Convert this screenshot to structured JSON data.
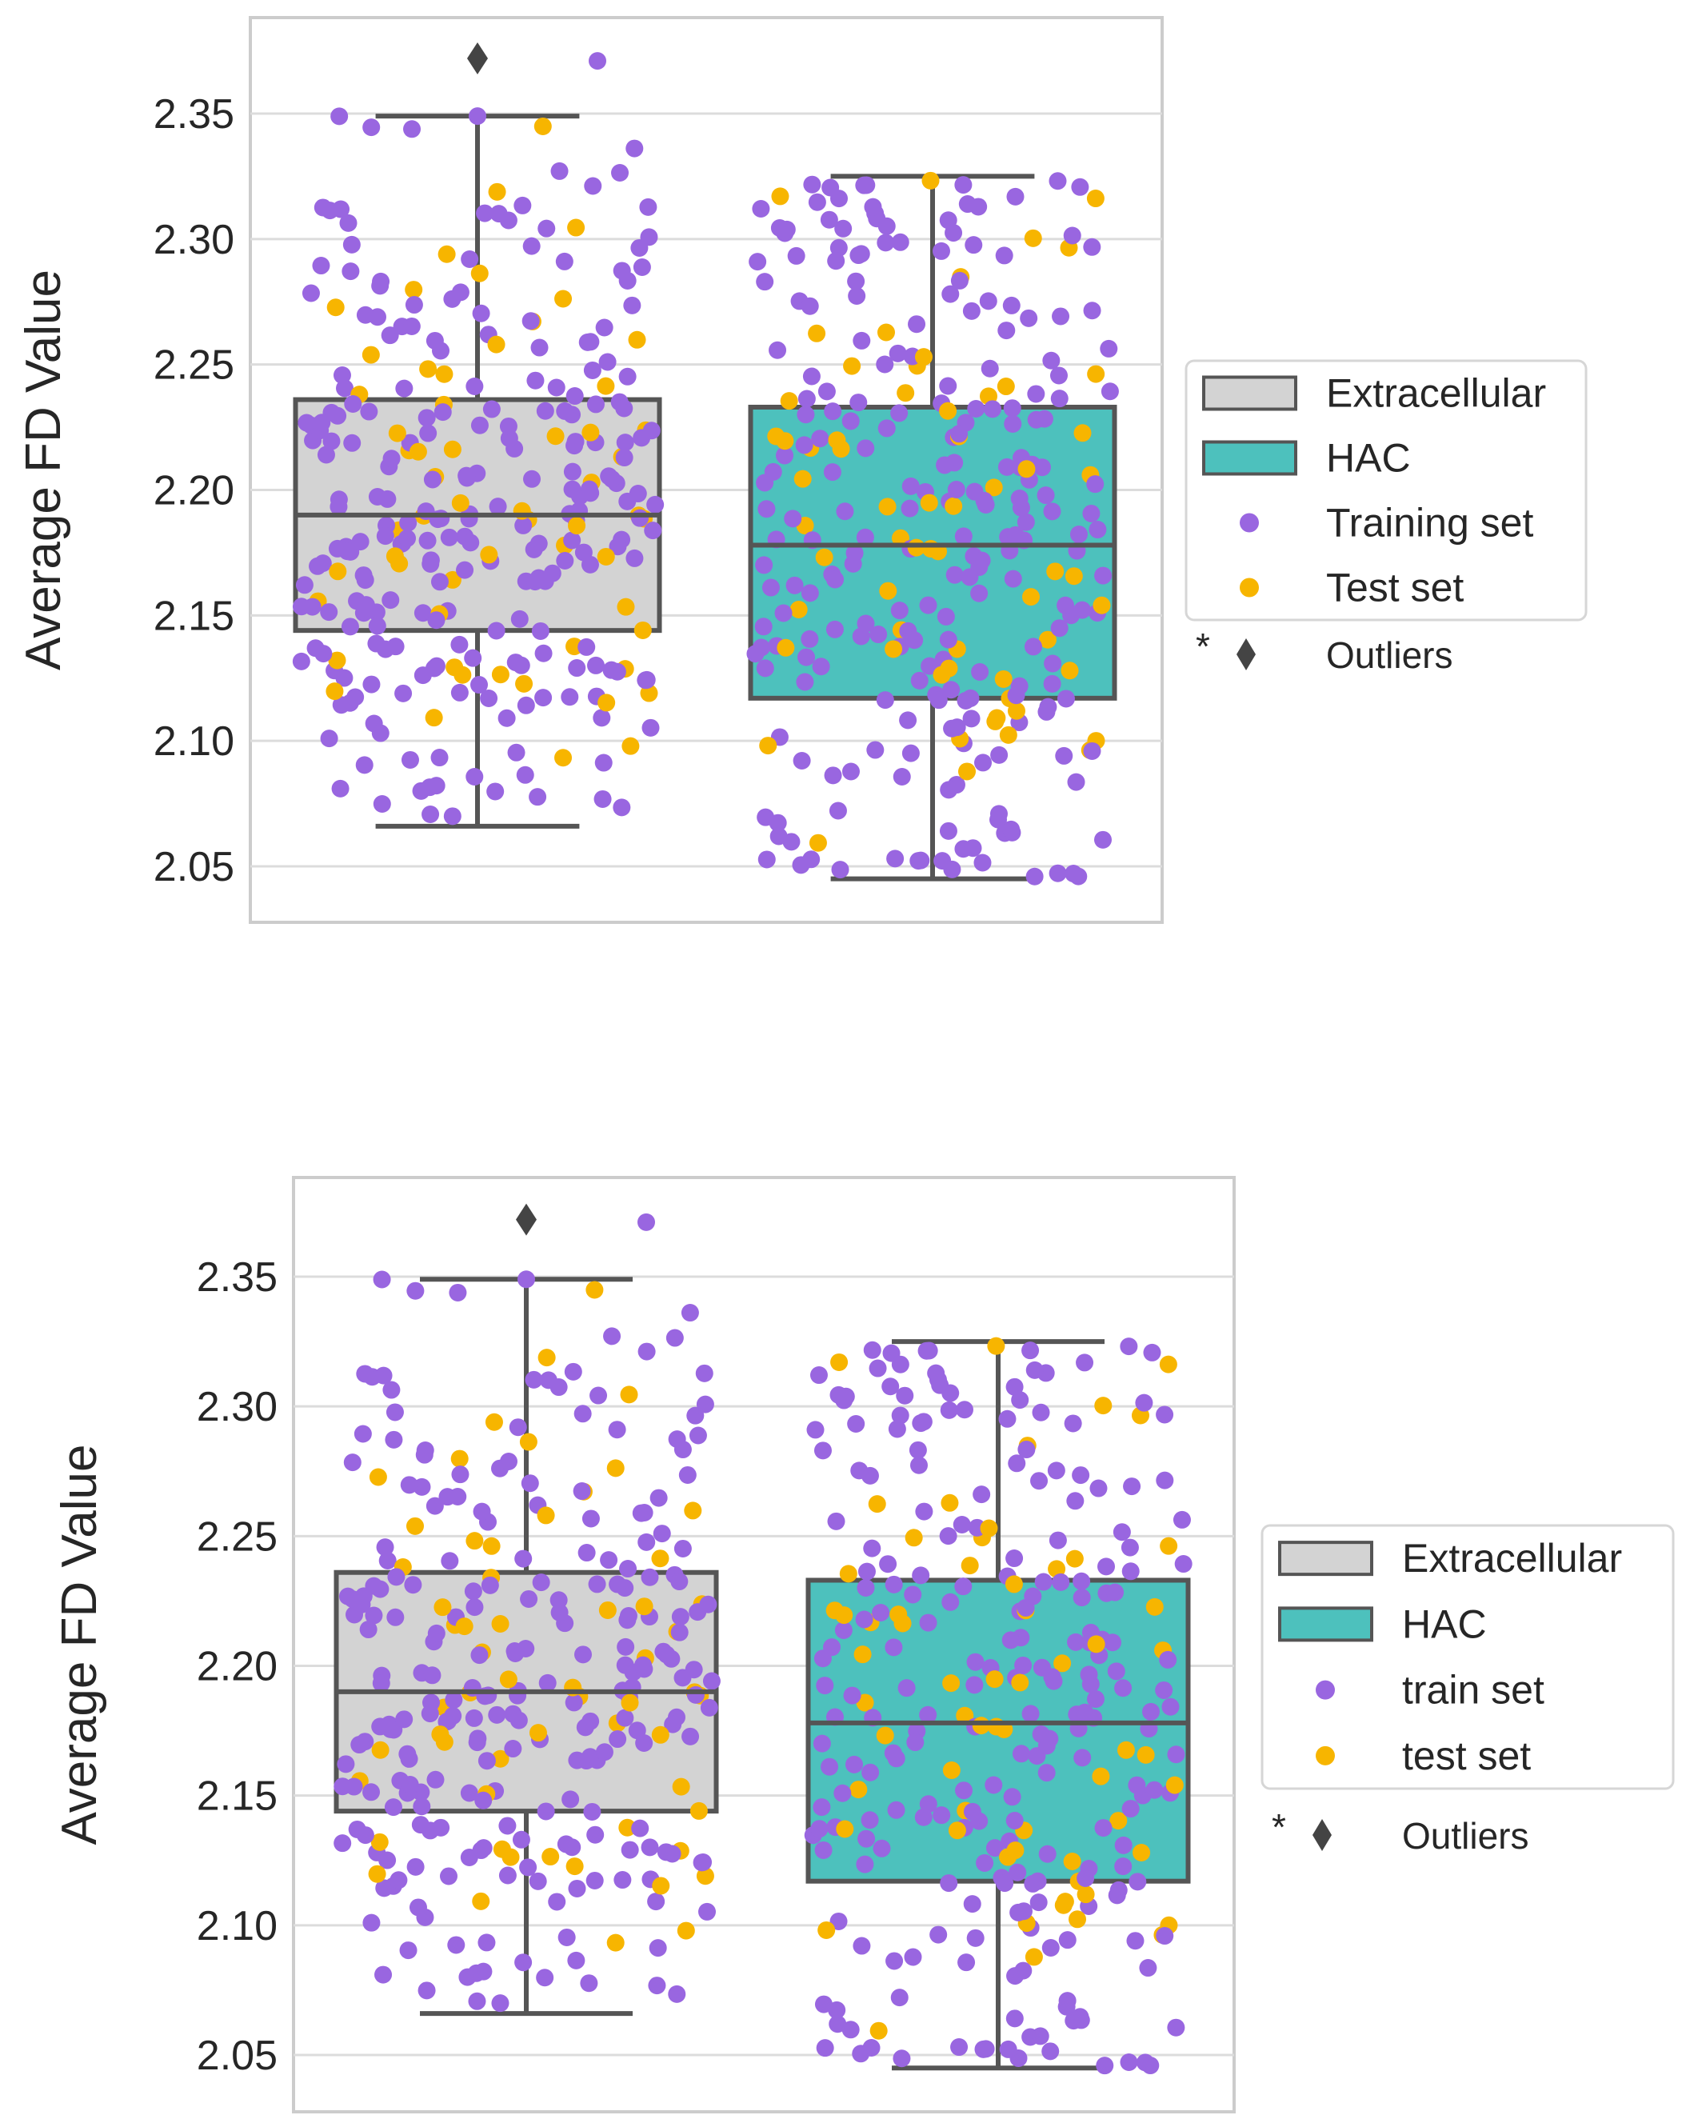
{
  "colors": {
    "extracellular_box": "#d3d3d3",
    "hac_box": "#4dc1bd",
    "train_point": "#9966e0",
    "test_point": "#f7b500",
    "edge": "#555555",
    "grid": "#dcdcdc",
    "frame": "#cccccc"
  },
  "chart_data": [
    {
      "type": "box",
      "ylabel": "Average FD Value",
      "yticks": [
        "2.05",
        "2.10",
        "2.15",
        "2.20",
        "2.25",
        "2.30",
        "2.35"
      ],
      "ylim": [
        2.027,
        2.387
      ],
      "grid": "horizontal",
      "legend_position": "right",
      "categories": [
        "Extracellular",
        "HAC"
      ],
      "boxes": [
        {
          "name": "Extracellular",
          "q1": 2.144,
          "median": 2.19,
          "q3": 2.236,
          "whisker_low": 2.066,
          "whisker_high": 2.349,
          "outliers": [
            2.372
          ]
        },
        {
          "name": "HAC",
          "q1": 2.117,
          "median": 2.178,
          "q3": 2.233,
          "whisker_low": 2.045,
          "whisker_high": 2.325,
          "outliers": []
        }
      ],
      "legend": {
        "box_1": "Extracellular",
        "box_2": "HAC",
        "points_1": "Training set",
        "points_2": "Test set",
        "outlier_star": "*",
        "outlier_label": "Outliers"
      },
      "point_seed": 7
    },
    {
      "type": "box",
      "ylabel": "Average FD Value",
      "yticks": [
        "2.05",
        "2.10",
        "2.15",
        "2.20",
        "2.25",
        "2.30",
        "2.35"
      ],
      "ylim": [
        2.027,
        2.387
      ],
      "grid": "horizontal",
      "legend_position": "right",
      "categories": [
        "Extracellular",
        "HAC"
      ],
      "boxes": [
        {
          "name": "Extracellular",
          "q1": 2.144,
          "median": 2.19,
          "q3": 2.236,
          "whisker_low": 2.066,
          "whisker_high": 2.349,
          "outliers": [
            2.372
          ]
        },
        {
          "name": "HAC",
          "q1": 2.117,
          "median": 2.178,
          "q3": 2.233,
          "whisker_low": 2.045,
          "whisker_high": 2.325,
          "outliers": []
        }
      ],
      "legend": {
        "box_1": "Extracellular",
        "box_2": "HAC",
        "points_1": "train set",
        "points_2": "test set",
        "outlier_star": "*",
        "outlier_label": "Outliers"
      },
      "point_seed": 7
    }
  ]
}
